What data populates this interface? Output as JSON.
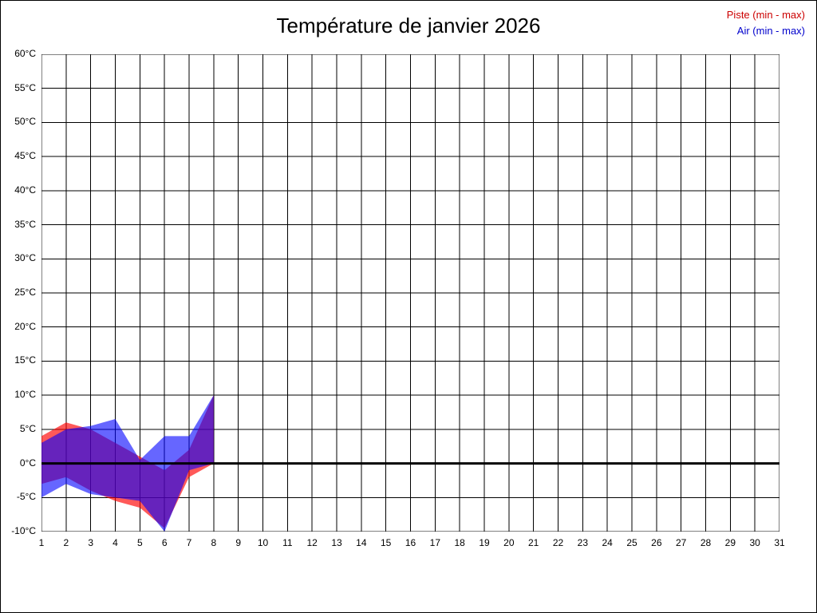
{
  "page": {
    "background": "#ffffff",
    "border_color": "#000000"
  },
  "chart": {
    "title": "Température de janvier 2026",
    "legend": [
      {
        "id": "piste",
        "label": "Piste (min - max)",
        "color": "#cc0000"
      },
      {
        "id": "air",
        "label": "Air (min - max)",
        "color": "#0000cc"
      }
    ]
  },
  "chart_data": {
    "type": "area",
    "title": "Température de janvier 2026",
    "x": [
      1,
      2,
      3,
      4,
      5,
      6,
      7,
      8
    ],
    "x_axis": {
      "min": 1,
      "max": 31,
      "tick_step": 1,
      "label": ""
    },
    "y_axis": {
      "min": -10,
      "max": 60,
      "tick_step": 5,
      "unit": "°C"
    },
    "grid": true,
    "zero_line": true,
    "zero_line_color": "#000000",
    "series": [
      {
        "id": "piste",
        "name": "Piste (min - max)",
        "kind": "min-max-band",
        "fill": "#ff0000",
        "fill_opacity": 0.65,
        "min": [
          -3,
          -2,
          -4,
          -5.5,
          -6.5,
          -9.5,
          -2,
          0
        ],
        "max": [
          4,
          6,
          5,
          3,
          1,
          -1,
          2,
          10
        ]
      },
      {
        "id": "air",
        "name": "Air (min - max)",
        "kind": "min-max-band",
        "fill": "#0000ff",
        "fill_opacity": 0.6,
        "min": [
          -5,
          -3,
          -4.5,
          -5,
          -5.5,
          -10,
          -1,
          0
        ],
        "max": [
          3,
          5,
          5.5,
          6.5,
          0.5,
          4,
          4,
          10
        ]
      }
    ]
  }
}
